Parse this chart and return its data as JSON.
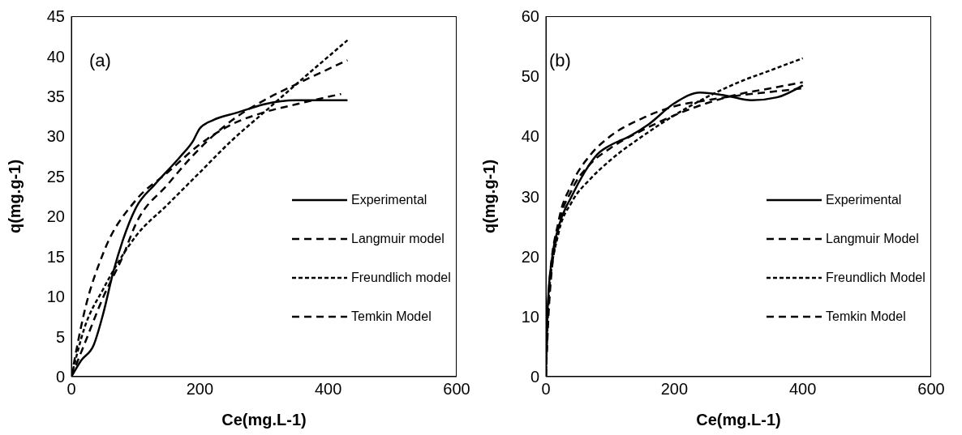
{
  "chart_data": [
    {
      "type": "line",
      "xlabel": "Ce(mg.L-1)",
      "ylabel": "q(mg.g-1)",
      "annotations": [
        "(a)"
      ],
      "xlim": [
        0,
        600
      ],
      "xticks": [
        0,
        200,
        400,
        600
      ],
      "ylim": [
        0,
        45
      ],
      "yticks": [
        0,
        5,
        10,
        15,
        20,
        25,
        30,
        35,
        40,
        45
      ],
      "grid": false,
      "legend": "right",
      "marker": "none",
      "series": [
        {
          "name": "Experimental",
          "color": "#000000",
          "line_style": "solid",
          "x": [
            0,
            15,
            35,
            50,
            65,
            80,
            100,
            130,
            170,
            190,
            200,
            220,
            260,
            300,
            350,
            430
          ],
          "values": [
            0,
            2,
            4,
            8,
            13,
            17,
            21,
            24,
            27.5,
            29.5,
            31,
            32,
            33,
            34,
            34.5,
            34.5
          ]
        },
        {
          "name": "Langmuir model",
          "color": "#000000",
          "line_style": "dashed",
          "x": [
            0,
            20,
            50,
            100,
            150,
            200,
            250,
            300,
            350,
            420
          ],
          "values": [
            0,
            8,
            15.5,
            22,
            25.5,
            29,
            31.5,
            33,
            34,
            35.3
          ]
        },
        {
          "name": "Freundlich model",
          "color": "#000000",
          "line_style": "dotted",
          "x": [
            0,
            20,
            50,
            100,
            150,
            200,
            250,
            300,
            350,
            430
          ],
          "values": [
            0,
            6,
            11,
            17.5,
            21.5,
            25.5,
            29.5,
            33,
            36.5,
            42
          ]
        },
        {
          "name": "Temkin Model",
          "color": "#000000",
          "line_style": "dashed",
          "x": [
            0,
            20,
            50,
            80,
            100,
            150,
            200,
            250,
            300,
            350,
            430
          ],
          "values": [
            0,
            4,
            10,
            15,
            19,
            24,
            28.5,
            32,
            34.5,
            36.5,
            39.5
          ]
        }
      ]
    },
    {
      "type": "line",
      "xlabel": "Ce(mg.L-1)",
      "ylabel": "q(mg.g-1)",
      "annotations": [
        "(b)"
      ],
      "xlim": [
        0,
        600
      ],
      "xticks": [
        0,
        200,
        400,
        600
      ],
      "ylim": [
        0,
        60
      ],
      "yticks": [
        0,
        10,
        20,
        30,
        40,
        50,
        60
      ],
      "grid": false,
      "legend": "right",
      "marker": "none",
      "series": [
        {
          "name": "Experimental",
          "color": "#000000",
          "line_style": "solid",
          "x": [
            0,
            3,
            10,
            20,
            40,
            60,
            80,
            100,
            130,
            160,
            200,
            240,
            280,
            320,
            360,
            400
          ],
          "values": [
            0,
            12,
            20,
            25,
            30,
            34,
            37,
            38.5,
            40,
            42,
            45.5,
            47.3,
            46.8,
            46,
            46.5,
            48.5
          ]
        },
        {
          "name": "Langmuir Model",
          "color": "#000000",
          "line_style": "dashed",
          "x": [
            0,
            5,
            20,
            40,
            70,
            100,
            150,
            200,
            250,
            300,
            350,
            400
          ],
          "values": [
            0,
            15,
            26,
            32,
            37,
            40,
            43,
            45,
            46,
            46.8,
            47.4,
            48
          ]
        },
        {
          "name": "Freundlich Model",
          "color": "#000000",
          "line_style": "dotted",
          "x": [
            0,
            5,
            20,
            40,
            70,
            100,
            150,
            200,
            250,
            300,
            350,
            400
          ],
          "values": [
            0,
            14,
            24,
            29,
            33,
            36,
            40,
            43.5,
            46.5,
            49,
            51,
            53
          ]
        },
        {
          "name": "Temkin Model",
          "color": "#000000",
          "line_style": "dashed",
          "x": [
            0,
            5,
            20,
            40,
            70,
            100,
            150,
            200,
            250,
            300,
            350,
            400
          ],
          "values": [
            0,
            12,
            25,
            31,
            35.5,
            38,
            41,
            43.5,
            45.5,
            47,
            48,
            49
          ]
        }
      ]
    }
  ]
}
